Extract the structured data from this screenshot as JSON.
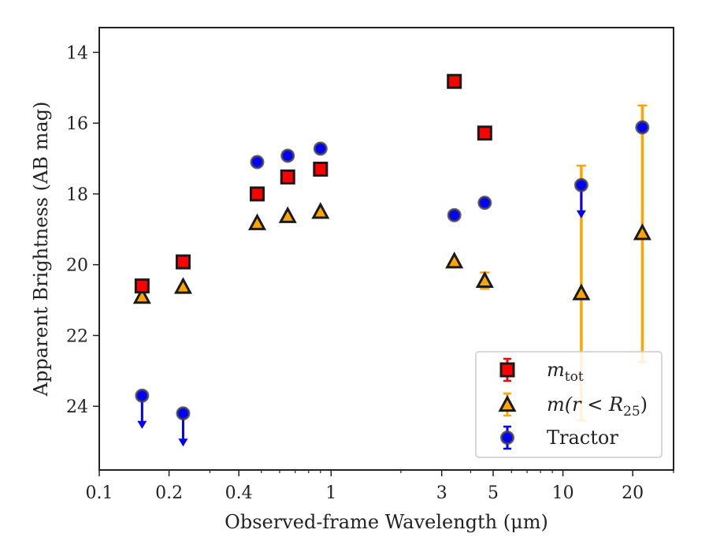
{
  "chart_data": {
    "type": "scatter",
    "xlabel": "Observed-frame Wavelength (μm)",
    "ylabel": "Apparent Brightness (AB mag)",
    "xscale": "log",
    "xlim": [
      0.1,
      30
    ],
    "ylim": [
      25.8,
      13.3
    ],
    "y_inverted": true,
    "grid": false,
    "legend_position": "bottom-right",
    "x_ticks": [
      {
        "value": 0.1,
        "label": "0.1"
      },
      {
        "value": 0.2,
        "label": "0.2"
      },
      {
        "value": 0.4,
        "label": "0.4"
      },
      {
        "value": 1,
        "label": "1"
      },
      {
        "value": 3,
        "label": "3"
      },
      {
        "value": 5,
        "label": "5"
      },
      {
        "value": 10,
        "label": "10"
      },
      {
        "value": 20,
        "label": "20"
      }
    ],
    "y_ticks": [
      {
        "value": 14,
        "label": "14"
      },
      {
        "value": 16,
        "label": "16"
      },
      {
        "value": 18,
        "label": "18"
      },
      {
        "value": 20,
        "label": "20"
      },
      {
        "value": 22,
        "label": "22"
      },
      {
        "value": 24,
        "label": "24"
      }
    ],
    "series": [
      {
        "name": "m_tot",
        "legend_main": "m",
        "legend_sub": "tot",
        "marker": "square",
        "color": "#ff0000",
        "points": [
          {
            "x": 0.153,
            "y": 20.6
          },
          {
            "x": 0.23,
            "y": 19.92
          },
          {
            "x": 0.48,
            "y": 18.0
          },
          {
            "x": 0.65,
            "y": 17.52
          },
          {
            "x": 0.9,
            "y": 17.3
          },
          {
            "x": 3.4,
            "y": 14.82
          },
          {
            "x": 4.6,
            "y": 16.28
          }
        ]
      },
      {
        "name": "m(r < R25)",
        "legend_main": "m(r < R",
        "legend_sub": "25",
        "legend_end": ")",
        "marker": "triangle",
        "color": "#ffa500",
        "points": [
          {
            "x": 0.153,
            "y": 20.9
          },
          {
            "x": 0.23,
            "y": 20.62
          },
          {
            "x": 0.48,
            "y": 18.82
          },
          {
            "x": 0.65,
            "y": 18.62
          },
          {
            "x": 0.9,
            "y": 18.5
          },
          {
            "x": 3.4,
            "y": 19.9
          },
          {
            "x": 4.6,
            "y": 20.45,
            "err": [
              20.22,
              20.68
            ]
          },
          {
            "x": 12.0,
            "y": 20.8,
            "err": [
              17.2,
              24.4
            ]
          },
          {
            "x": 22.0,
            "y": 19.1,
            "err": [
              15.5,
              22.75
            ]
          }
        ]
      },
      {
        "name": "Tractor",
        "legend_main": "Tractor",
        "marker": "circle",
        "color": "#0000ff",
        "points": [
          {
            "x": 0.153,
            "y": 23.7,
            "upper_limit": true
          },
          {
            "x": 0.23,
            "y": 24.2,
            "upper_limit": true
          },
          {
            "x": 0.48,
            "y": 17.1
          },
          {
            "x": 0.65,
            "y": 16.92
          },
          {
            "x": 0.9,
            "y": 16.72
          },
          {
            "x": 3.4,
            "y": 18.6
          },
          {
            "x": 4.6,
            "y": 18.25
          },
          {
            "x": 12.0,
            "y": 17.75,
            "upper_limit": true
          },
          {
            "x": 22.0,
            "y": 16.12
          }
        ]
      }
    ]
  }
}
